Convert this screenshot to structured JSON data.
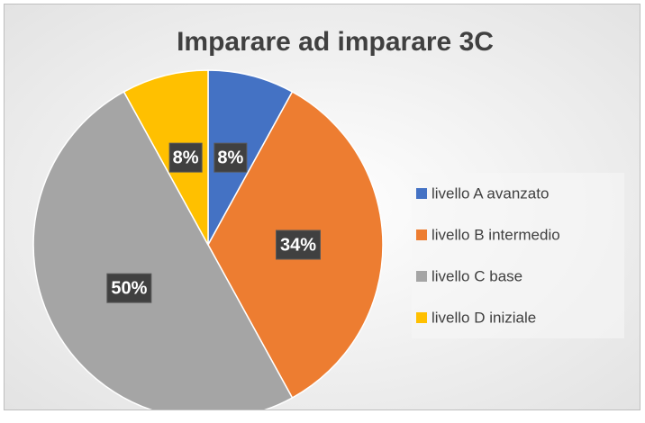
{
  "chart_data": {
    "type": "pie",
    "title": "Imparare ad imparare 3C",
    "categories": [
      "livello A avanzato",
      "livello B intermedio",
      "livello C base",
      "livello D iniziale"
    ],
    "values": [
      8,
      34,
      50,
      8
    ],
    "value_labels": [
      "8%",
      "34%",
      "50%",
      "8%"
    ],
    "colors": [
      "#4472c4",
      "#ed7d31",
      "#a5a5a5",
      "#ffc000"
    ],
    "legend": "right"
  }
}
